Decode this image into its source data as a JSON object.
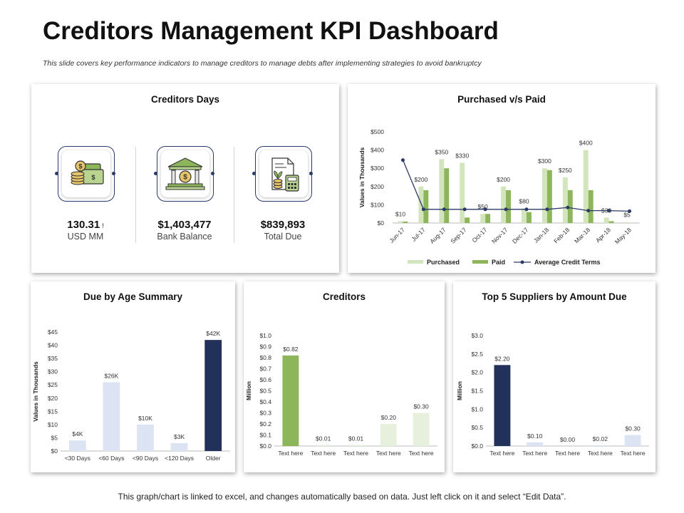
{
  "page": {
    "title": "Creditors Management KPI Dashboard",
    "subtitle": "This slide covers key performance indicators to manage creditors to manage debts after implementing strategies to avoid bankruptcy",
    "footer": "This graph/chart is linked to excel, and changes automatically based on data. Just left click on it and select “Edit Data”."
  },
  "colors": {
    "navy": "#22315a",
    "green": "#8db55a",
    "light_green": "#d3e5bd",
    "pale_green": "#e7f0dc",
    "light_blue": "#dce3f3",
    "line": "#2b3a67"
  },
  "creditors_days": {
    "title": "Creditors Days",
    "kpis": [
      {
        "icon": "money-stack-icon",
        "value": "130.31",
        "value_suffix": "!",
        "label": "USD MM"
      },
      {
        "icon": "bank-icon",
        "value": "$1,403,477",
        "value_suffix": "",
        "label": "Bank Balance"
      },
      {
        "icon": "invoice-calculator-icon",
        "value": "$839,893",
        "value_suffix": "",
        "label": "Total Due"
      }
    ]
  },
  "chart_data": [
    {
      "id": "purchased_vs_paid",
      "type": "bar",
      "title": "Purchased v/s Paid",
      "ylabel": "Values in Thousands",
      "ylim": [
        0,
        500
      ],
      "yticks": [
        "$0",
        "$100",
        "$200",
        "$300",
        "$400",
        "$500"
      ],
      "categories": [
        "Jun-17",
        "Jul-17",
        "Aug-17",
        "Sep-17",
        "Oct-17",
        "Nov-17",
        "Dec-17",
        "Jan-18",
        "Feb-18",
        "Mar-18",
        "Apr-18",
        "May-18"
      ],
      "series": [
        {
          "name": "Purchased",
          "type": "bar",
          "color": "#d3e5bd",
          "values": [
            10,
            200,
            350,
            330,
            50,
            200,
            80,
            300,
            250,
            400,
            30,
            5
          ],
          "labels": [
            "$10",
            "$200",
            "$350",
            "$330",
            "$50",
            "$200",
            "$80",
            "$300",
            "$250",
            "$400",
            "$30",
            "$5"
          ]
        },
        {
          "name": "Paid",
          "type": "bar",
          "color": "#8db55a",
          "values": [
            8,
            180,
            300,
            30,
            50,
            180,
            60,
            290,
            180,
            180,
            10,
            0
          ]
        },
        {
          "name": "Average Credit Terms",
          "type": "line",
          "color": "#2b3a67",
          "values": [
            345,
            75,
            75,
            75,
            75,
            75,
            75,
            75,
            85,
            68,
            68,
            65
          ]
        }
      ],
      "legend": "bottom"
    },
    {
      "id": "due_by_age",
      "type": "bar",
      "title": "Due by Age Summary",
      "ylabel": "Values in Thousands",
      "ylim": [
        0,
        45
      ],
      "yticks": [
        "$0",
        "$5",
        "$10",
        "$15",
        "$20",
        "$25",
        "$30",
        "$35",
        "$40",
        "$45"
      ],
      "categories": [
        "<30 Days",
        "<60 Days",
        "<90 Days",
        "<120 Days",
        "Older"
      ],
      "values": [
        4,
        26,
        10,
        3,
        42
      ],
      "labels": [
        "$4K",
        "$26K",
        "$10K",
        "$3K",
        "$42K"
      ],
      "colors": [
        "#dce3f3",
        "#dce3f3",
        "#dce3f3",
        "#dce3f3",
        "#22315a"
      ]
    },
    {
      "id": "creditors",
      "type": "bar",
      "title": "Creditors",
      "ylabel": "Million",
      "ylim": [
        0,
        1.0
      ],
      "yticks": [
        "$0.0",
        "$0.1",
        "$0.2",
        "$0.3",
        "$0.4",
        "$0.5",
        "$0.6",
        "$0.7",
        "$0.8",
        "$0.9",
        "$1.0"
      ],
      "categories": [
        "Text here",
        "Text here",
        "Text here",
        "Text here",
        "Text here"
      ],
      "values": [
        0.82,
        0.01,
        0.01,
        0.2,
        0.3
      ],
      "labels": [
        "$0.82",
        "$0.01",
        "$0.01",
        "$0.20",
        "$0.30"
      ],
      "colors": [
        "#8db55a",
        "#e7f0dc",
        "#e7f0dc",
        "#e7f0dc",
        "#e7f0dc"
      ]
    },
    {
      "id": "top5_suppliers",
      "type": "bar",
      "title": "Top 5 Suppliers by Amount  Due",
      "ylabel": "Million",
      "ylim": [
        0,
        3.0
      ],
      "yticks": [
        "$0.0",
        "$0.5",
        "$1.0",
        "$1.5",
        "$2.0",
        "$2.5",
        "$3.0"
      ],
      "categories": [
        "Text here",
        "Text here",
        "Text here",
        "Text here",
        "Text here"
      ],
      "values": [
        2.2,
        0.1,
        0.0,
        0.02,
        0.3
      ],
      "labels": [
        "$2.20",
        "$0.10",
        "$0.00",
        "$0.02",
        "$0.30"
      ],
      "colors": [
        "#22315a",
        "#dce3f3",
        "#dce3f3",
        "#dce3f3",
        "#dce3f3"
      ]
    }
  ]
}
